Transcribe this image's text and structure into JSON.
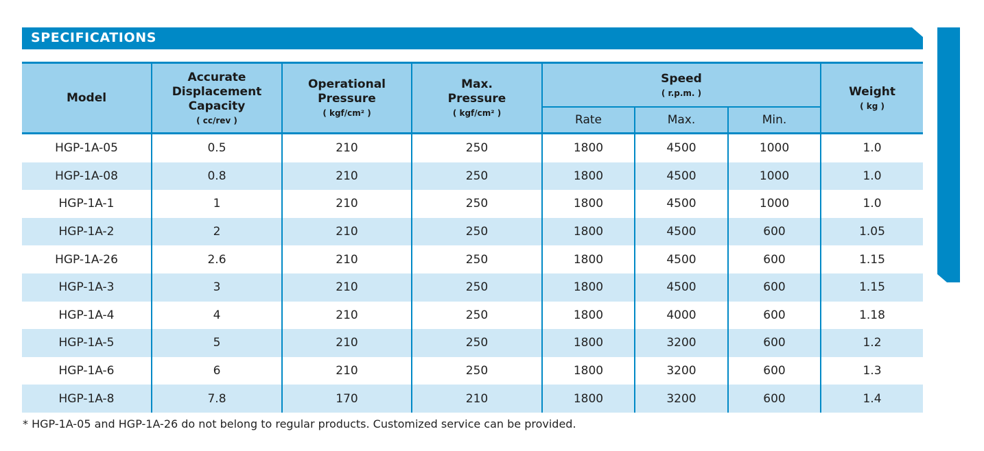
{
  "section_title": "SPECIFICATIONS",
  "colors": {
    "accent": "#0089c6",
    "header_bg": "#9bd1ed",
    "stripe": "#cfe8f6"
  },
  "headers": {
    "model": "Model",
    "capacity": {
      "label_line1": "Accurate",
      "label_line2": "Displacement",
      "label_line3": "Capacity",
      "unit": "( cc/rev )"
    },
    "operational_pressure": {
      "label_line1": "Operational",
      "label_line2": "Pressure",
      "unit": "( kgf/cm² )"
    },
    "max_pressure": {
      "label_line1": "Max.",
      "label_line2": "Pressure",
      "unit": "( kgf/cm² )"
    },
    "speed": {
      "label": "Speed",
      "unit": "( r.p.m. )",
      "rate": "Rate",
      "max": "Max.",
      "min": "Min."
    },
    "weight": {
      "label": "Weight",
      "unit": "( kg )"
    }
  },
  "rows": [
    {
      "model": "HGP-1A-05",
      "capacity": "0.5",
      "op_pressure": "210",
      "max_pressure": "250",
      "rate": "1800",
      "max": "4500",
      "min": "1000",
      "weight": "1.0"
    },
    {
      "model": "HGP-1A-08",
      "capacity": "0.8",
      "op_pressure": "210",
      "max_pressure": "250",
      "rate": "1800",
      "max": "4500",
      "min": "1000",
      "weight": "1.0"
    },
    {
      "model": "HGP-1A-1",
      "capacity": "1",
      "op_pressure": "210",
      "max_pressure": "250",
      "rate": "1800",
      "max": "4500",
      "min": "1000",
      "weight": "1.0"
    },
    {
      "model": "HGP-1A-2",
      "capacity": "2",
      "op_pressure": "210",
      "max_pressure": "250",
      "rate": "1800",
      "max": "4500",
      "min": "600",
      "weight": "1.05"
    },
    {
      "model": "HGP-1A-26",
      "capacity": "2.6",
      "op_pressure": "210",
      "max_pressure": "250",
      "rate": "1800",
      "max": "4500",
      "min": "600",
      "weight": "1.15"
    },
    {
      "model": "HGP-1A-3",
      "capacity": "3",
      "op_pressure": "210",
      "max_pressure": "250",
      "rate": "1800",
      "max": "4500",
      "min": "600",
      "weight": "1.15"
    },
    {
      "model": "HGP-1A-4",
      "capacity": "4",
      "op_pressure": "210",
      "max_pressure": "250",
      "rate": "1800",
      "max": "4000",
      "min": "600",
      "weight": "1.18"
    },
    {
      "model": "HGP-1A-5",
      "capacity": "5",
      "op_pressure": "210",
      "max_pressure": "250",
      "rate": "1800",
      "max": "3200",
      "min": "600",
      "weight": "1.2"
    },
    {
      "model": "HGP-1A-6",
      "capacity": "6",
      "op_pressure": "210",
      "max_pressure": "250",
      "rate": "1800",
      "max": "3200",
      "min": "600",
      "weight": "1.3"
    },
    {
      "model": "HGP-1A-8",
      "capacity": "7.8",
      "op_pressure": "170",
      "max_pressure": "210",
      "rate": "1800",
      "max": "3200",
      "min": "600",
      "weight": "1.4"
    }
  ],
  "footnote": "* HGP-1A-05 and HGP-1A-26 do not belong to regular products. Customized service can be provided."
}
